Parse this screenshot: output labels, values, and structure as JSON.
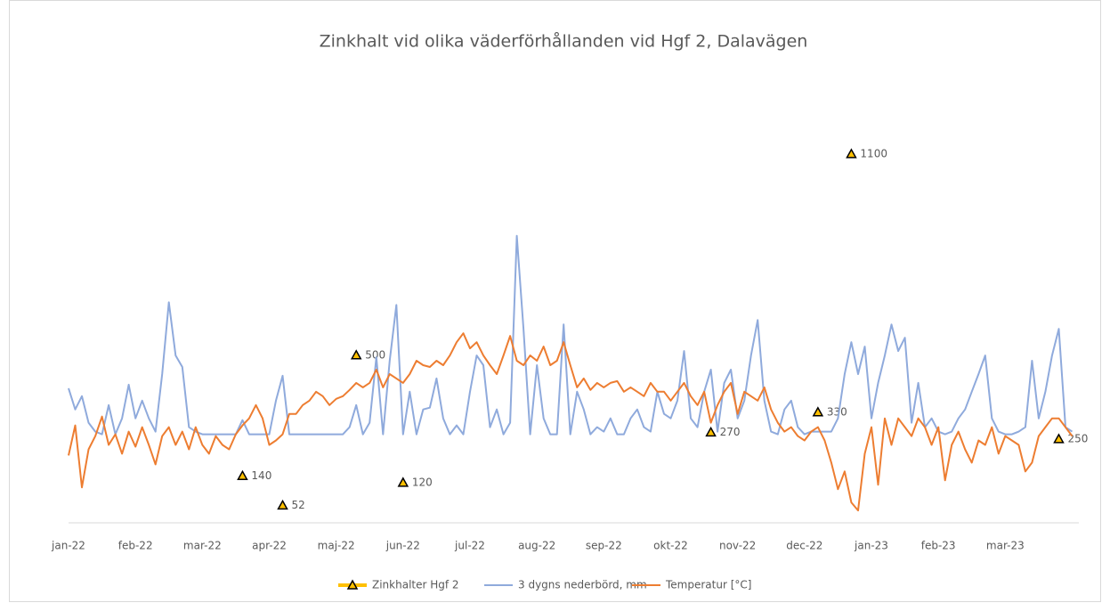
{
  "chart_data": {
    "type": "line",
    "title": "Zinkhalt vid olika väderförhållanden vid Hgf 2, Dalavägen",
    "categories": [
      "jan-22",
      null,
      null,
      null,
      null,
      null,
      null,
      null,
      null,
      null,
      "feb-22",
      null,
      null,
      null,
      null,
      null,
      null,
      null,
      null,
      null,
      "mar-22",
      null,
      null,
      null,
      null,
      null,
      null,
      null,
      null,
      null,
      "apr-22",
      null,
      null,
      null,
      null,
      null,
      null,
      null,
      null,
      null,
      "maj-22",
      null,
      null,
      null,
      null,
      null,
      null,
      null,
      null,
      null,
      "jun-22",
      null,
      null,
      null,
      null,
      null,
      null,
      null,
      null,
      null,
      "jul-22",
      null,
      null,
      null,
      null,
      null,
      null,
      null,
      null,
      null,
      "aug-22",
      null,
      null,
      null,
      null,
      null,
      null,
      null,
      null,
      null,
      "sep-22",
      null,
      null,
      null,
      null,
      null,
      null,
      null,
      null,
      null,
      "okt-22",
      null,
      null,
      null,
      null,
      null,
      null,
      null,
      null,
      null,
      "nov-22",
      null,
      null,
      null,
      null,
      null,
      null,
      null,
      null,
      null,
      "dec-22",
      null,
      null,
      null,
      null,
      null,
      null,
      null,
      null,
      null,
      "jan-23",
      null,
      null,
      null,
      null,
      null,
      null,
      null,
      null,
      null,
      "feb-23",
      null,
      null,
      null,
      null,
      null,
      null,
      null,
      null,
      null,
      "mar-23",
      null,
      null,
      null,
      null,
      null,
      null,
      null,
      null,
      null,
      null
    ],
    "ylim": [
      -10,
      43
    ],
    "y2lim": [
      0,
      1400
    ],
    "series": [
      {
        "name": "Zinkhalter Hgf 2",
        "color": "#ffc000",
        "style": "markers",
        "axis": "y2",
        "values": [
          null,
          null,
          null,
          null,
          null,
          null,
          null,
          null,
          null,
          null,
          null,
          null,
          null,
          null,
          null,
          null,
          null,
          null,
          null,
          null,
          null,
          null,
          null,
          null,
          null,
          null,
          140,
          null,
          null,
          null,
          null,
          null,
          52,
          null,
          null,
          null,
          null,
          null,
          null,
          null,
          null,
          null,
          null,
          500,
          null,
          null,
          null,
          null,
          null,
          null,
          120,
          null,
          null,
          null,
          null,
          null,
          null,
          null,
          null,
          null,
          null,
          null,
          null,
          null,
          null,
          null,
          null,
          null,
          null,
          null,
          null,
          null,
          null,
          null,
          null,
          null,
          null,
          null,
          null,
          null,
          null,
          null,
          null,
          null,
          null,
          null,
          null,
          null,
          null,
          null,
          null,
          null,
          null,
          null,
          null,
          null,
          270,
          null,
          null,
          null,
          null,
          null,
          null,
          null,
          null,
          null,
          null,
          null,
          null,
          null,
          null,
          null,
          330,
          null,
          null,
          null,
          null,
          1100,
          null,
          null,
          null,
          null,
          null,
          null,
          null,
          null,
          null,
          null,
          null,
          null,
          null,
          null,
          null,
          null,
          null,
          null,
          null,
          null,
          null,
          null,
          null,
          null,
          null,
          null,
          null,
          null,
          null,
          null,
          250,
          null,
          null
        ]
      },
      {
        "name": "3 dygns nederbörd, mm",
        "color": "#8faadc",
        "style": "line",
        "values": [
          5.2,
          2.8,
          4.3,
          1.3,
          0.3,
          0,
          3.3,
          0,
          1.8,
          5.6,
          1.8,
          3.8,
          1.8,
          0.3,
          6.8,
          14.9,
          8.9,
          7.6,
          0.8,
          0.3,
          0,
          0,
          0,
          0,
          0,
          0,
          1.6,
          0,
          0,
          0,
          0,
          3.8,
          6.6,
          0,
          0,
          0,
          0,
          0,
          0,
          0,
          0,
          0,
          0.8,
          3.3,
          0,
          1.3,
          8.7,
          0,
          8.3,
          14.6,
          0,
          4.8,
          0,
          2.8,
          3,
          6.3,
          1.8,
          0,
          1,
          0,
          4.8,
          8.9,
          7.8,
          0.8,
          2.8,
          0,
          1.3,
          22.4,
          11.9,
          0,
          7.8,
          1.8,
          0,
          0,
          12.4,
          0,
          4.8,
          2.8,
          0,
          0.8,
          0.3,
          1.8,
          0,
          0,
          1.8,
          2.8,
          0.8,
          0.3,
          4.8,
          2.3,
          1.8,
          3.8,
          9.4,
          1.8,
          0.8,
          4.8,
          7.3,
          0.3,
          5.8,
          7.3,
          1.8,
          3.8,
          8.9,
          12.9,
          3.8,
          0.3,
          0,
          2.8,
          3.8,
          0.8,
          0,
          0.3,
          0.3,
          0.3,
          0.3,
          1.8,
          6.8,
          10.4,
          6.8,
          9.9,
          1.8,
          5.8,
          8.9,
          12.4,
          9.4,
          10.9,
          1.3,
          5.8,
          0.8,
          1.8,
          0.3,
          0,
          0.3,
          1.8,
          2.8,
          4.8,
          6.8,
          8.9,
          1.8,
          0.3,
          0,
          0,
          0.3,
          0.8,
          8.3,
          1.8,
          4.8,
          8.9,
          11.9,
          0.8,
          0.3
        ]
      },
      {
        "name": "Temperatur [°C]",
        "color": "#ed7d31",
        "style": "line",
        "values": [
          -2.4,
          1,
          -6,
          -1.7,
          -0.2,
          2,
          -1.2,
          0,
          -2.2,
          0.3,
          -1.4,
          0.8,
          -1.2,
          -3.4,
          -0.2,
          0.8,
          -1.2,
          0.3,
          -1.7,
          0.8,
          -1.2,
          -2.2,
          -0.2,
          -1.2,
          -1.7,
          0,
          1,
          1.8,
          3.3,
          1.8,
          -1.2,
          -0.7,
          0,
          2.3,
          2.3,
          3.3,
          3.8,
          4.8,
          4.3,
          3.3,
          4,
          4.3,
          5,
          5.8,
          5.3,
          5.8,
          7.3,
          5.3,
          6.8,
          6.3,
          5.8,
          6.8,
          8.3,
          7.8,
          7.6,
          8.3,
          7.8,
          8.9,
          10.4,
          11.4,
          9.7,
          10.4,
          8.9,
          7.8,
          6.8,
          8.9,
          11.1,
          8.3,
          7.8,
          8.9,
          8.3,
          9.9,
          7.8,
          8.3,
          10.4,
          7.8,
          5.3,
          6.3,
          5,
          5.8,
          5.3,
          5.8,
          6,
          4.8,
          5.3,
          4.8,
          4.3,
          5.8,
          4.8,
          4.8,
          3.8,
          4.8,
          5.8,
          4.3,
          3.3,
          4.8,
          1.3,
          3.3,
          4.8,
          5.8,
          2.3,
          4.8,
          4.3,
          3.8,
          5.3,
          2.8,
          1.3,
          0.3,
          0.8,
          -0.2,
          -0.7,
          0.3,
          0.8,
          -0.7,
          -3.2,
          -6.2,
          -4.2,
          -7.7,
          -8.6,
          -2.2,
          0.8,
          -5.7,
          1.8,
          -1.2,
          1.8,
          0.8,
          -0.2,
          1.8,
          0.8,
          -1.2,
          0.8,
          -5.2,
          -1.2,
          0.3,
          -1.7,
          -3.2,
          -0.7,
          -1.2,
          0.8,
          -2.2,
          -0.2,
          -0.7,
          -1.2,
          -4.2,
          -3.2,
          -0.2,
          0.8,
          1.8,
          1.8,
          0.8,
          -0.2
        ]
      }
    ]
  }
}
